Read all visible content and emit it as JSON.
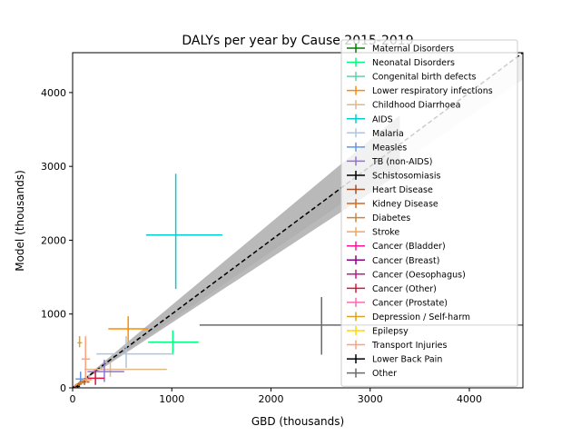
{
  "chart_data": {
    "type": "scatter",
    "title": "DALYs per year by Cause 2015-2019",
    "xlabel": "GBD (thousands)",
    "ylabel": "Model (thousands)",
    "xlim": [
      0,
      4540
    ],
    "ylim": [
      0,
      4540
    ],
    "xticks": [
      0,
      1000,
      2000,
      3000,
      4000
    ],
    "yticks": [
      0,
      1000,
      2000,
      3000,
      4000
    ],
    "grid": false,
    "legend_position": "upper right",
    "reference_line": {
      "style": "dashed",
      "color": "#000000",
      "description": "y = x"
    },
    "confidence_band": {
      "lower_slope": 0.88,
      "upper_slope": 1.12,
      "inner_color": "#808080",
      "outer_color": "#d9d9d9"
    },
    "series": [
      {
        "name": "Maternal Disorders",
        "color": "#008000",
        "x": 40,
        "xerr": [
          25,
          55
        ],
        "y": 40,
        "yerr": [
          25,
          55
        ]
      },
      {
        "name": "Neonatal Disorders",
        "color": "#00ff7f",
        "x": 1010,
        "xerr": [
          760,
          1270
        ],
        "y": 620,
        "yerr": [
          450,
          780
        ]
      },
      {
        "name": "Congenital birth defects",
        "color": "#66cdaa",
        "x": 110,
        "xerr": [
          70,
          150
        ],
        "y": 90,
        "yerr": [
          60,
          130
        ]
      },
      {
        "name": "Lower respiratory infections",
        "color": "#ff8c00",
        "x": 560,
        "xerr": [
          360,
          760
        ],
        "y": 800,
        "yerr": [
          620,
          970
        ]
      },
      {
        "name": "Childhood Diarrhoea",
        "color": "#deb887",
        "x": 380,
        "xerr": [
          120,
          950
        ],
        "y": 250,
        "yerr": [
          150,
          350
        ]
      },
      {
        "name": "AIDS",
        "color": "#00ced1",
        "x": 1040,
        "xerr": [
          740,
          1510
        ],
        "y": 2070,
        "yerr": [
          1340,
          2900
        ]
      },
      {
        "name": "Malaria",
        "color": "#b0c4de",
        "x": 540,
        "xerr": [
          240,
          1020
        ],
        "y": 460,
        "yerr": [
          270,
          700
        ]
      },
      {
        "name": "Measles",
        "color": "#6495ed",
        "x": 80,
        "xerr": [
          30,
          140
        ],
        "y": 120,
        "yerr": [
          40,
          220
        ]
      },
      {
        "name": "TB (non-AIDS)",
        "color": "#9370db",
        "x": 320,
        "xerr": [
          150,
          520
        ],
        "y": 220,
        "yerr": [
          80,
          380
        ]
      },
      {
        "name": "Schistosomiasis",
        "color": "#000000",
        "x": 20,
        "xerr": [
          10,
          35
        ],
        "y": 15,
        "yerr": [
          5,
          30
        ]
      },
      {
        "name": "Heart Disease",
        "color": "#a0522d",
        "x": 120,
        "xerr": [
          70,
          170
        ],
        "y": 80,
        "yerr": [
          40,
          130
        ]
      },
      {
        "name": "Kidney Disease",
        "color": "#d2691e",
        "x": 60,
        "xerr": [
          40,
          90
        ],
        "y": 50,
        "yerr": [
          30,
          75
        ]
      },
      {
        "name": "Diabetes",
        "color": "#cd853f",
        "x": 90,
        "xerr": [
          60,
          120
        ],
        "y": 70,
        "yerr": [
          45,
          100
        ]
      },
      {
        "name": "Stroke",
        "color": "#f4a460",
        "x": 140,
        "xerr": [
          100,
          190
        ],
        "y": 110,
        "yerr": [
          70,
          160
        ]
      },
      {
        "name": "Cancer (Bladder)",
        "color": "#ff1493",
        "x": 25,
        "xerr": [
          15,
          35
        ],
        "y": 20,
        "yerr": [
          10,
          30
        ]
      },
      {
        "name": "Cancer (Breast)",
        "color": "#8b008b",
        "x": 50,
        "xerr": [
          30,
          70
        ],
        "y": 40,
        "yerr": [
          25,
          60
        ]
      },
      {
        "name": "Cancer (Oesophagus)",
        "color": "#c71585",
        "x": 35,
        "xerr": [
          20,
          55
        ],
        "y": 30,
        "yerr": [
          15,
          50
        ]
      },
      {
        "name": "Cancer (Other)",
        "color": "#dc143c",
        "x": 230,
        "xerr": [
          150,
          320
        ],
        "y": 130,
        "yerr": [
          40,
          240
        ]
      },
      {
        "name": "Cancer (Prostate)",
        "color": "#ff69b4",
        "x": 30,
        "xerr": [
          15,
          45
        ],
        "y": 25,
        "yerr": [
          10,
          40
        ]
      },
      {
        "name": "Depression / Self-harm",
        "color": "#daa520",
        "x": 70,
        "xerr": [
          50,
          95
        ],
        "y": 610,
        "yerr": [
          550,
          700
        ]
      },
      {
        "name": "Epilepsy",
        "color": "#ffd700",
        "x": 45,
        "xerr": [
          25,
          65
        ],
        "y": 35,
        "yerr": [
          20,
          55
        ]
      },
      {
        "name": "Transport Injuries",
        "color": "#ffa07a",
        "x": 130,
        "xerr": [
          90,
          175
        ],
        "y": 390,
        "yerr": [
          130,
          700
        ]
      },
      {
        "name": "Lower Back Pain",
        "color": "#000000",
        "x": 50,
        "xerr": [
          30,
          75
        ],
        "y": 20,
        "yerr": [
          5,
          40
        ]
      },
      {
        "name": "Other",
        "color": "#696969",
        "x": 2510,
        "xerr": [
          1280,
          4540
        ],
        "y": 850,
        "yerr": [
          450,
          1230
        ]
      }
    ]
  }
}
